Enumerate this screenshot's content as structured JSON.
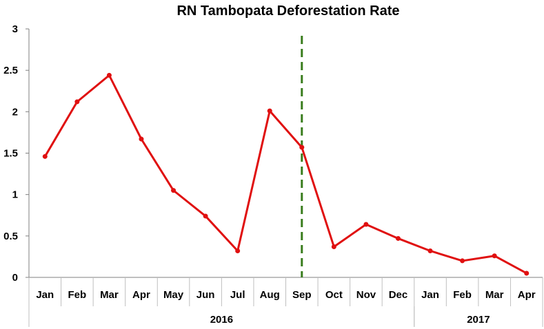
{
  "chart_data": {
    "type": "line",
    "title": "RN Tambopata Deforestation Rate",
    "xlabel": "",
    "ylabel": "",
    "categories": [
      "Jan",
      "Feb",
      "Mar",
      "Apr",
      "May",
      "Jun",
      "Jul",
      "Aug",
      "Sep",
      "Oct",
      "Nov",
      "Dec",
      "Jan",
      "Feb",
      "Mar",
      "Apr"
    ],
    "groups": [
      {
        "label": "2016",
        "start": 0,
        "end": 11
      },
      {
        "label": "2017",
        "start": 12,
        "end": 15
      }
    ],
    "series": [
      {
        "color": "#e01010",
        "values": [
          1.46,
          2.12,
          2.44,
          1.67,
          1.05,
          0.74,
          0.32,
          2.01,
          1.57,
          0.37,
          0.64,
          0.47,
          0.32,
          0.2,
          0.26,
          0.05
        ]
      }
    ],
    "ylim": [
      0,
      3
    ],
    "yticks": [
      "0",
      "0.5",
      "1",
      "1.5",
      "2",
      "2.5",
      "3"
    ],
    "marker_line": {
      "category_index": 8,
      "color": "#3a7d1e",
      "style": "dashed"
    },
    "grid": false,
    "legend": "none"
  }
}
